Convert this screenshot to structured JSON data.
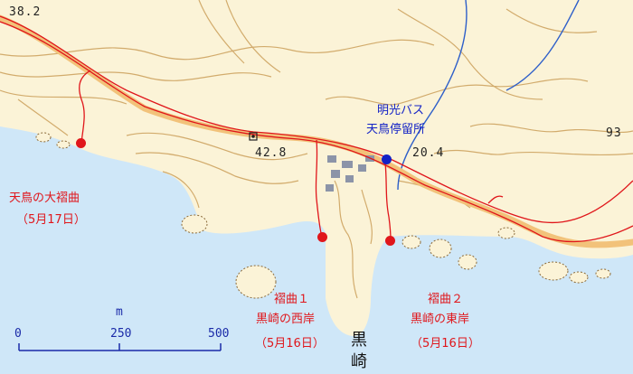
{
  "colors": {
    "land": "#fbf3d7",
    "sea": "#cfe7f8",
    "contour": "#c89a52",
    "route": "#e0161b",
    "road_fill": "#f2c27a",
    "bus_stop": "#1322c6",
    "river": "#2e5fc9"
  },
  "icons": {
    "bus_stop": "blue-dot-icon",
    "viewpoint": "red-dot-icon",
    "benchmark": "triangulation-mark-icon"
  },
  "elevations": {
    "top_left": "38.2",
    "road": "42.8",
    "bus_stop": "20.4",
    "right": "93"
  },
  "bus_stop": {
    "line1": "明光バス",
    "line2": "天鳥停留所"
  },
  "spots": {
    "big": {
      "name": "天鳥の大褶曲",
      "date": "（5月17日）"
    },
    "fold1": {
      "line1": "褶曲１",
      "line2": "黒崎の西岸",
      "date": "（5月16日）"
    },
    "fold2": {
      "line1": "褶曲２",
      "line2": "黒崎の東岸",
      "date": "（5月16日）"
    }
  },
  "place": {
    "line1": "黒",
    "line2": "崎"
  },
  "scale": {
    "unit": "m",
    "ticks": [
      "0",
      "250",
      "500"
    ]
  }
}
